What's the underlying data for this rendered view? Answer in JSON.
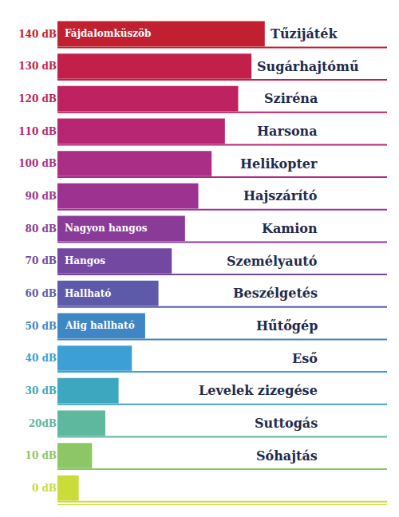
{
  "chart_data": {
    "type": "bar",
    "orientation": "horizontal",
    "categories": [
      "140 dB",
      "130 dB",
      "120 dB",
      "110 dB",
      "100 dB",
      "90 dB",
      "80 dB",
      "70 dB",
      "60 dB",
      "50 dB",
      "40 dB",
      "30 dB",
      "20dB",
      "10 dB",
      "0 dB"
    ],
    "values": [
      140,
      130,
      120,
      110,
      100,
      90,
      80,
      70,
      60,
      50,
      40,
      30,
      20,
      10,
      0
    ],
    "colors": [
      "#c0202f",
      "#c21f4a",
      "#be2260",
      "#b62672",
      "#aa2d86",
      "#9e3290",
      "#8a3b98",
      "#7248a1",
      "#5d5ba9",
      "#3f86c5",
      "#3c9fd6",
      "#3ea7c0",
      "#5db89e",
      "#8cc665",
      "#c9dc3a"
    ],
    "bar_texts": [
      "Fájdalomküszöb",
      null,
      null,
      null,
      null,
      null,
      "Nagyon hangos",
      "Hangos",
      "Hallható",
      "Alig hallható",
      null,
      null,
      null,
      null,
      null
    ],
    "sources": [
      "Tűzijáték",
      "Sugárhajtómű",
      "Sziréna",
      "Harsona",
      "Helikopter",
      "Hajszárító",
      "Kamion",
      "Személyautó",
      "Beszélgetés",
      "Hűtőgép",
      "Eső",
      "Levelek zizegése",
      "Suttogás",
      "Sóhajtás",
      null
    ],
    "xlim": [
      -16,
      232
    ],
    "tick_labels": "y",
    "grid": false
  }
}
